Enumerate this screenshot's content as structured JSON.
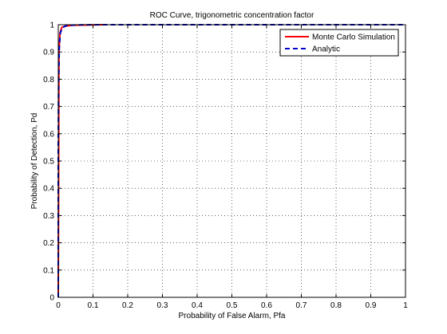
{
  "chart_data": {
    "type": "line",
    "title": "ROC Curve, trigonometric concentration factor",
    "xlabel": "Probability of False Alarm, Pfa",
    "ylabel": "Probability of Detection, Pd",
    "xlim": [
      0,
      1
    ],
    "ylim": [
      0,
      1
    ],
    "xticks": [
      0,
      0.1,
      0.2,
      0.3,
      0.4,
      0.5,
      0.6,
      0.7,
      0.8,
      0.9,
      1
    ],
    "yticks": [
      0,
      0.1,
      0.2,
      0.3,
      0.4,
      0.5,
      0.6,
      0.7,
      0.8,
      0.9,
      1
    ],
    "xtick_labels": [
      "0",
      "0.1",
      "0.2",
      "0.3",
      "0.4",
      "0.5",
      "0.6",
      "0.7",
      "0.8",
      "0.9",
      "1"
    ],
    "ytick_labels": [
      "0",
      "0.1",
      "0.2",
      "0.3",
      "0.4",
      "0.5",
      "0.6",
      "0.7",
      "0.8",
      "0.9",
      "1"
    ],
    "grid": true,
    "grid_style": "dotted",
    "legend_position": "top-right",
    "series": [
      {
        "name": "Monte Carlo Simulation",
        "color": "#ff0000",
        "style": "solid",
        "x": [
          0,
          0.002,
          0.005,
          0.01,
          0.02,
          0.04,
          0.08,
          0.13
        ],
        "y": [
          0,
          0.9,
          0.97,
          0.99,
          0.995,
          0.998,
          0.999,
          1.0
        ]
      },
      {
        "name": "Analytic",
        "color": "#0000cc",
        "style": "dashed",
        "x": [
          0,
          0,
          0.001,
          0.003,
          0.006,
          0.012,
          0.025,
          0.05,
          0.1,
          0.2,
          0.3,
          0.5,
          0.7,
          1.0
        ],
        "y": [
          0,
          0.55,
          0.8,
          0.92,
          0.97,
          0.99,
          0.997,
          0.999,
          1.0,
          1.0,
          1.0,
          1.0,
          1.0,
          1.0
        ]
      }
    ]
  }
}
